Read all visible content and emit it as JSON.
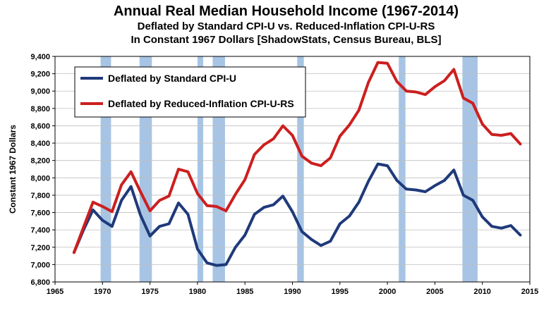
{
  "chart_data": {
    "type": "line",
    "title": "Annual Real Median Household Income (1967-2014)",
    "subtitle_1": "Deflated by Standard CPI-U  vs. Reduced-Inflation CPI-U-RS",
    "subtitle_2": "In Constant 1967 Dollars  [ShadowStats, Census Bureau, BLS]",
    "xlabel": "",
    "ylabel": "Constant 1967 Dollars",
    "xlim": [
      1965,
      2015
    ],
    "ylim": [
      6800,
      9400
    ],
    "x_ticks": [
      1965,
      1970,
      1975,
      1980,
      1985,
      1990,
      1995,
      2000,
      2005,
      2010,
      2015
    ],
    "y_ticks": [
      6800,
      7000,
      7200,
      7400,
      7600,
      7800,
      8000,
      8200,
      8400,
      8600,
      8800,
      9000,
      9200,
      9400
    ],
    "y_tick_labels": [
      "6,800",
      "7,000",
      "7,200",
      "7,400",
      "7,600",
      "7,800",
      "8,000",
      "8,200",
      "8,400",
      "8,600",
      "8,800",
      "9,000",
      "9,200",
      "9,400"
    ],
    "recessions": [
      [
        1969.8,
        1970.9
      ],
      [
        1973.9,
        1975.2
      ],
      [
        1980.0,
        1980.6
      ],
      [
        1981.6,
        1982.9
      ],
      [
        1990.5,
        1991.2
      ],
      [
        2001.2,
        2001.9
      ],
      [
        2007.9,
        2009.5
      ]
    ],
    "recession_color": "#a7c4e4",
    "x": [
      1967,
      1968,
      1969,
      1970,
      1971,
      1972,
      1973,
      1974,
      1975,
      1976,
      1977,
      1978,
      1979,
      1980,
      1981,
      1982,
      1983,
      1984,
      1985,
      1986,
      1987,
      1988,
      1989,
      1990,
      1991,
      1992,
      1993,
      1994,
      1995,
      1996,
      1997,
      1998,
      1999,
      2000,
      2001,
      2002,
      2003,
      2004,
      2005,
      2006,
      2007,
      2008,
      2009,
      2010,
      2011,
      2012,
      2013,
      2014
    ],
    "series": [
      {
        "name": "Deflated by Standard CPI-U",
        "color": "#1f3a7a",
        "values": [
          7140,
          7400,
          7630,
          7510,
          7440,
          7740,
          7900,
          7570,
          7330,
          7440,
          7470,
          7710,
          7580,
          7180,
          7020,
          6990,
          7000,
          7200,
          7340,
          7580,
          7660,
          7690,
          7790,
          7610,
          7380,
          7290,
          7220,
          7270,
          7470,
          7560,
          7720,
          7960,
          8160,
          8140,
          7970,
          7870,
          7860,
          7840,
          7910,
          7970,
          8090,
          7800,
          7740,
          7550,
          7440,
          7420,
          7450,
          7340
        ]
      },
      {
        "name": "Deflated by Reduced-Inflation CPI-U-RS",
        "color": "#cc1f1f",
        "values": [
          7140,
          7430,
          7720,
          7670,
          7610,
          7920,
          8070,
          7840,
          7620,
          7740,
          7790,
          8100,
          8070,
          7820,
          7680,
          7670,
          7620,
          7810,
          7980,
          8270,
          8380,
          8450,
          8600,
          8490,
          8250,
          8170,
          8140,
          8230,
          8480,
          8610,
          8780,
          9100,
          9330,
          9320,
          9110,
          9000,
          8990,
          8960,
          9050,
          9120,
          9250,
          8920,
          8860,
          8620,
          8500,
          8490,
          8510,
          8390
        ]
      }
    ],
    "legend_position": "top-left"
  }
}
